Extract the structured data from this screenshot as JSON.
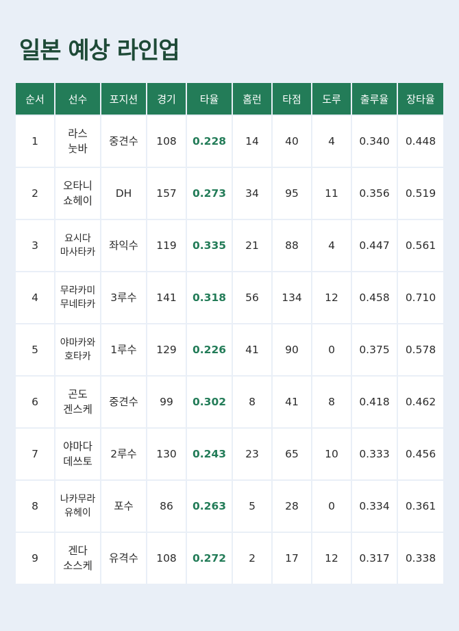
{
  "title": "일본 예상 라인업",
  "headers": [
    "순서",
    "선수",
    "포지션",
    "경기",
    "타율",
    "홈런",
    "타점",
    "도루",
    "출루율",
    "장타율"
  ],
  "rows": [
    {
      "order": "1",
      "name": [
        "라스",
        "눗바"
      ],
      "position": "중견수",
      "games": "108",
      "avg": "0.228",
      "hr": "14",
      "rbi": "40",
      "sb": "4",
      "obp": "0.340",
      "slg": "0.448"
    },
    {
      "order": "2",
      "name": [
        "오타니",
        "쇼헤이"
      ],
      "position": "DH",
      "games": "157",
      "avg": "0.273",
      "hr": "34",
      "rbi": "95",
      "sb": "11",
      "obp": "0.356",
      "slg": "0.519"
    },
    {
      "order": "3",
      "name": [
        "요시다",
        "마사타카"
      ],
      "position": "좌익수",
      "games": "119",
      "avg": "0.335",
      "hr": "21",
      "rbi": "88",
      "sb": "4",
      "obp": "0.447",
      "slg": "0.561"
    },
    {
      "order": "4",
      "name": [
        "무라카미",
        "무네타카"
      ],
      "position": "3루수",
      "games": "141",
      "avg": "0.318",
      "hr": "56",
      "rbi": "134",
      "sb": "12",
      "obp": "0.458",
      "slg": "0.710"
    },
    {
      "order": "5",
      "name": [
        "야마카와",
        "호타카"
      ],
      "position": "1루수",
      "games": "129",
      "avg": "0.226",
      "hr": "41",
      "rbi": "90",
      "sb": "0",
      "obp": "0.375",
      "slg": "0.578"
    },
    {
      "order": "6",
      "name": [
        "곤도",
        "겐스케"
      ],
      "position": "중견수",
      "games": "99",
      "avg": "0.302",
      "hr": "8",
      "rbi": "41",
      "sb": "8",
      "obp": "0.418",
      "slg": "0.462"
    },
    {
      "order": "7",
      "name": [
        "야마다",
        "데쓰토"
      ],
      "position": "2루수",
      "games": "130",
      "avg": "0.243",
      "hr": "23",
      "rbi": "65",
      "sb": "10",
      "obp": "0.333",
      "slg": "0.456"
    },
    {
      "order": "8",
      "name": [
        "나카무라",
        "유헤이"
      ],
      "position": "포수",
      "games": "86",
      "avg": "0.263",
      "hr": "5",
      "rbi": "28",
      "sb": "0",
      "obp": "0.334",
      "slg": "0.361"
    },
    {
      "order": "9",
      "name": [
        "겐다",
        "소스케"
      ],
      "position": "유격수",
      "games": "108",
      "avg": "0.272",
      "hr": "2",
      "rbi": "17",
      "sb": "12",
      "obp": "0.317",
      "slg": "0.338"
    }
  ]
}
